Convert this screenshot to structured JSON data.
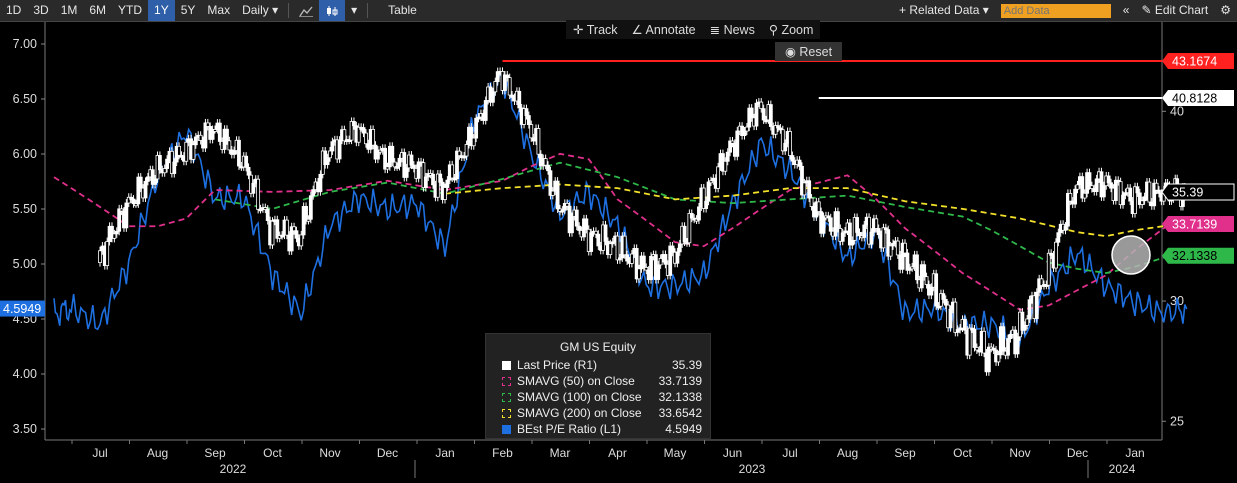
{
  "toolbar": {
    "ranges": [
      "1D",
      "3D",
      "1M",
      "6M",
      "YTD",
      "1Y",
      "5Y",
      "Max"
    ],
    "active_range": "1Y",
    "frequency": "Daily",
    "table_label": "Table",
    "related_data": "+ Related Data",
    "add_data_placeholder": "Add Data",
    "collapse_glyph": "«",
    "edit_chart": "Edit Chart"
  },
  "tools": {
    "track": "Track",
    "annotate": "Annotate",
    "news": "News",
    "zoom": "Zoom",
    "reset": "Reset"
  },
  "colors": {
    "price": "#ffffff",
    "pe": "#1e6fe0",
    "sma50": "#e0308c",
    "sma100": "#2fb84a",
    "sma200": "#f2e02a",
    "high": "#ff2020",
    "accent": "#f0a020"
  },
  "chart_data": {
    "type": "line",
    "instrument": "GM US Equity",
    "left_axis": {
      "ticks": [
        "7.00",
        "6.50",
        "6.00",
        "5.50",
        "5.00",
        "4.50",
        "4.00",
        "3.50"
      ],
      "range": [
        3.4,
        7.2
      ]
    },
    "right_axis": {
      "ticks": [
        "40",
        "30",
        "25"
      ],
      "range": [
        24.3,
        45.8
      ]
    },
    "x_months": [
      "Jul",
      "Aug",
      "Sep",
      "Oct",
      "Nov",
      "Dec",
      "Jan",
      "Feb",
      "Mar",
      "Apr",
      "May",
      "Jun",
      "Jul",
      "Aug",
      "Sep",
      "Oct",
      "Nov",
      "Dec",
      "Jan"
    ],
    "x_years": [
      "2022",
      "2023",
      "2024"
    ],
    "markers": [
      {
        "label": "43.1674",
        "value": 43.1674,
        "color": "#ff2020",
        "text_color": "#ffffff"
      },
      {
        "label": "40.8128",
        "value": 40.8128,
        "color": "#ffffff",
        "text_color": "#000000"
      },
      {
        "label": "35.39",
        "value": 35.39,
        "color": "#ffffff",
        "text_color": "#000000",
        "bg": "#000000",
        "fg": "#ffffff"
      },
      {
        "label": "33.7139",
        "value": 33.7139,
        "color": "#e0308c",
        "text_color": "#ffffff"
      },
      {
        "label": "32.1338",
        "value": 32.1338,
        "color": "#2fb84a",
        "text_color": "#000000"
      }
    ],
    "left_marker": {
      "label": "4.5949",
      "value": 4.5949,
      "color": "#1e6fe0"
    },
    "series": [
      {
        "name": "Last Price (R1)",
        "value": "35.39",
        "color": "#ffffff",
        "type": "candles",
        "x_months": [
          0,
          0.5,
          1,
          1.5,
          2,
          2.5,
          3,
          3.5,
          4,
          4.5,
          5,
          5.5,
          6,
          6.5,
          7,
          7.5,
          8,
          8.5,
          9,
          9.5,
          10,
          10.5,
          11,
          11.5,
          12,
          12.5,
          13,
          13.5,
          14,
          14.5,
          15,
          15.5,
          16,
          16.5,
          17,
          17.5,
          18,
          18.5,
          18.9
        ],
        "values": [
          31.8,
          34.6,
          36.5,
          37.6,
          39.0,
          37.2,
          33.5,
          33.0,
          37.6,
          39.0,
          37.2,
          36.8,
          35.5,
          38.5,
          42.4,
          39.2,
          34.8,
          33.2,
          32.6,
          31.5,
          32.0,
          34.8,
          37.8,
          40.3,
          38.0,
          34.2,
          33.2,
          33.5,
          32.1,
          30.6,
          28.8,
          27.6,
          28.5,
          31.2,
          35.6,
          35.9,
          35.0,
          35.4,
          35.39
        ]
      },
      {
        "name": "SMAVG (50)  on Close",
        "value": "33.7139",
        "color": "#e0308c",
        "type": "dashed",
        "x_months": [
          -0.8,
          0,
          0.5,
          1,
          1.5,
          2,
          3,
          4,
          5,
          6,
          7,
          7.5,
          8,
          8.5,
          9,
          10,
          10.5,
          11,
          12,
          13,
          13.5,
          14,
          15,
          16,
          16.5,
          17,
          17.5,
          18,
          18.5,
          18.6
        ],
        "values": [
          36.2,
          34.6,
          33.6,
          33.6,
          34.0,
          35.5,
          35.4,
          35.5,
          36.0,
          35.5,
          36.0,
          36.8,
          37.5,
          37.2,
          35.0,
          32.8,
          32.6,
          33.5,
          35.5,
          36.3,
          35.0,
          33.5,
          31.3,
          29.6,
          29.8,
          30.5,
          31.2,
          32.4,
          33.5,
          33.7
        ]
      },
      {
        "name": "SMAVG (100)  on Close",
        "value": "32.1338",
        "color": "#2fb84a",
        "type": "dashed",
        "x_months": [
          2,
          3,
          4,
          5,
          6,
          7,
          8,
          9,
          10,
          11,
          12,
          13,
          14,
          15,
          15.5,
          16,
          16.5,
          17,
          17.5,
          18,
          18.6
        ],
        "values": [
          35.0,
          34.5,
          35.4,
          35.9,
          35.3,
          36.1,
          37.0,
          36.2,
          35.0,
          34.8,
          35.0,
          35.2,
          34.6,
          34.1,
          33.4,
          32.6,
          31.8,
          31.5,
          31.3,
          31.6,
          32.13
        ]
      },
      {
        "name": "SMAVG (200)  on Close",
        "value": "33.6542",
        "color": "#f2e02a",
        "type": "dashed",
        "x_months": [
          6,
          7,
          8,
          9,
          10,
          11,
          12,
          13,
          14,
          15,
          16,
          17,
          17.5,
          18,
          18.6
        ],
        "values": [
          35.3,
          35.6,
          35.8,
          35.6,
          35.0,
          35.2,
          35.6,
          35.6,
          34.9,
          34.5,
          34.0,
          33.3,
          33.1,
          33.4,
          33.65
        ]
      },
      {
        "name": "BEst P/E Ratio  (L1)",
        "value": "4.5949",
        "color": "#1e6fe0",
        "type": "line",
        "axis": "left",
        "x_months": [
          -0.8,
          -0.5,
          0,
          0.5,
          1,
          1.5,
          2,
          2.5,
          3,
          3.5,
          4,
          4.5,
          5,
          5.5,
          6,
          6.5,
          7,
          7.5,
          8,
          8.5,
          9,
          9.5,
          10,
          10.5,
          11,
          11.5,
          12,
          12.5,
          13,
          13.5,
          14,
          14.5,
          15,
          15.5,
          16,
          16.5,
          17,
          17.5,
          18,
          18.5,
          18.9
        ],
        "values": [
          4.55,
          4.6,
          4.45,
          5.0,
          5.8,
          6.2,
          5.6,
          5.6,
          4.9,
          4.55,
          5.35,
          5.6,
          5.5,
          5.55,
          5.15,
          6.3,
          6.7,
          6.0,
          5.45,
          5.65,
          5.35,
          4.8,
          4.8,
          4.9,
          5.55,
          6.1,
          5.85,
          5.45,
          5.05,
          5.3,
          4.55,
          4.6,
          4.45,
          4.45,
          4.3,
          4.8,
          5.1,
          4.8,
          4.65,
          4.55,
          4.59
        ]
      }
    ]
  }
}
